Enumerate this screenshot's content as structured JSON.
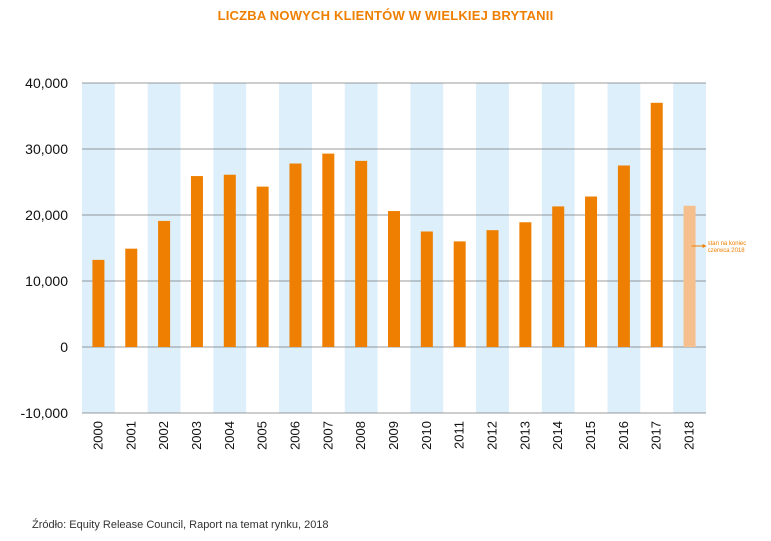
{
  "chart_data": {
    "type": "bar",
    "title": "LICZBA NOWYCH KLIENTÓW W WIELKIEJ BRYTANII",
    "xlabel": "",
    "ylabel": "",
    "categories": [
      "2000",
      "2001",
      "2002",
      "2003",
      "2004",
      "2005",
      "2006",
      "2007",
      "2008",
      "2009",
      "2010",
      "2011",
      "2012",
      "2013",
      "2014",
      "2015",
      "2016",
      "2017",
      "2018"
    ],
    "values": [
      13200,
      14900,
      19100,
      25900,
      26100,
      24300,
      27800,
      29300,
      28200,
      20600,
      17500,
      16000,
      17700,
      18900,
      21300,
      22800,
      27500,
      37000,
      21400
    ],
    "ylim": [
      -10000,
      40000
    ],
    "yticks": [
      -10000,
      0,
      10000,
      20000,
      30000,
      40000
    ],
    "ytick_labels": [
      "-10,000",
      "0",
      "10,000",
      "20,000",
      "30,000",
      "40,000"
    ],
    "gridlines": true,
    "highlighted_index": 18,
    "annotation": {
      "line1": "stan na koniec",
      "line2": "czerwca 2018",
      "target_index": 18
    },
    "colors": {
      "bar": "#ee7f00",
      "bar_partial": "#f6c08e",
      "band": "#dceffa",
      "grid": "#7a7a7a",
      "title": "#ee7f00"
    }
  },
  "source": "Źródło: Equity Release Council, Raport na temat rynku, 2018"
}
